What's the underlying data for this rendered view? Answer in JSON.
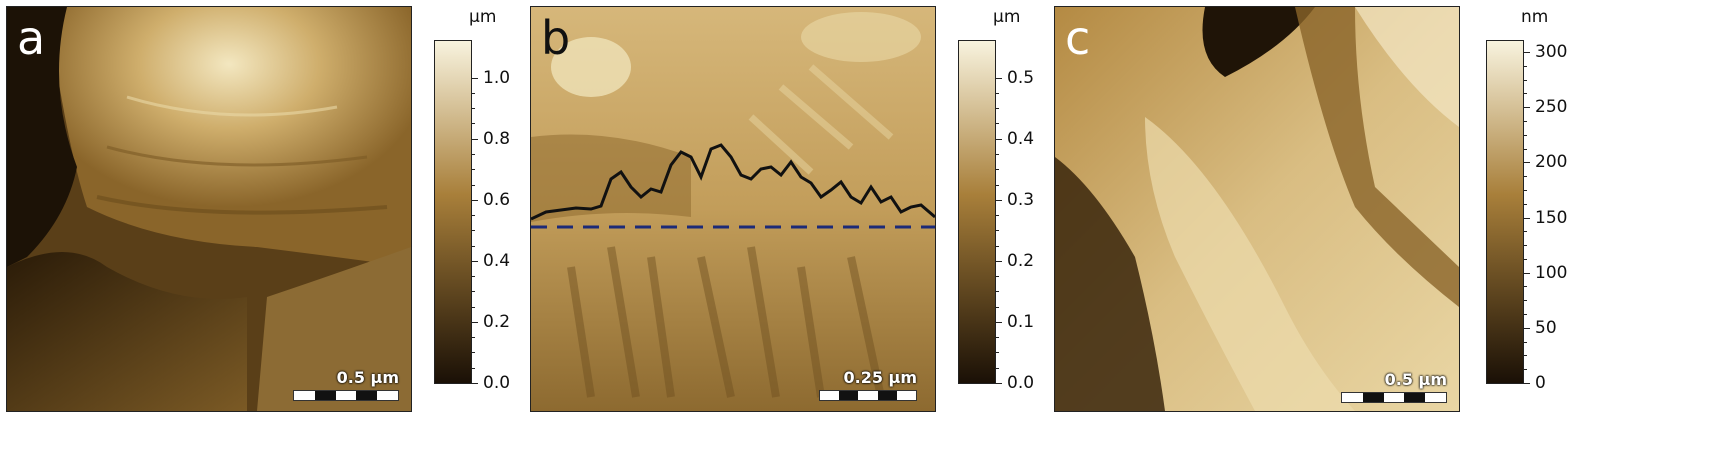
{
  "panels": [
    {
      "letter": "a",
      "scale_label": "0.5 µm",
      "colorbar": {
        "unit": "µm",
        "min": 0.0,
        "max": 1.12,
        "ticks": [
          "0.0",
          "0.2",
          "0.4",
          "0.6",
          "0.8",
          "1.0"
        ],
        "tick_values": [
          0.0,
          0.2,
          0.4,
          0.6,
          0.8,
          1.0
        ]
      }
    },
    {
      "letter": "b",
      "scale_label": "0.25 µm",
      "colorbar": {
        "unit": "µm",
        "min": 0.0,
        "max": 0.56,
        "ticks": [
          "0.0",
          "0.1",
          "0.2",
          "0.3",
          "0.4",
          "0.5"
        ],
        "tick_values": [
          0.0,
          0.1,
          0.2,
          0.3,
          0.4,
          0.5
        ]
      }
    },
    {
      "letter": "c",
      "scale_label": "0.5 µm",
      "colorbar": {
        "unit": "nm",
        "min": 0,
        "max": 310,
        "ticks": [
          "0",
          "50",
          "100",
          "150",
          "200",
          "250",
          "300"
        ],
        "tick_values": [
          0,
          50,
          100,
          150,
          200,
          250,
          300
        ]
      }
    }
  ],
  "colors": {
    "afm_dark": "#1a1006",
    "afm_mid": "#a87f3a",
    "afm_light": "#f8f3de",
    "profile_line": "#111111",
    "baseline_dash": "#1c2a78"
  }
}
